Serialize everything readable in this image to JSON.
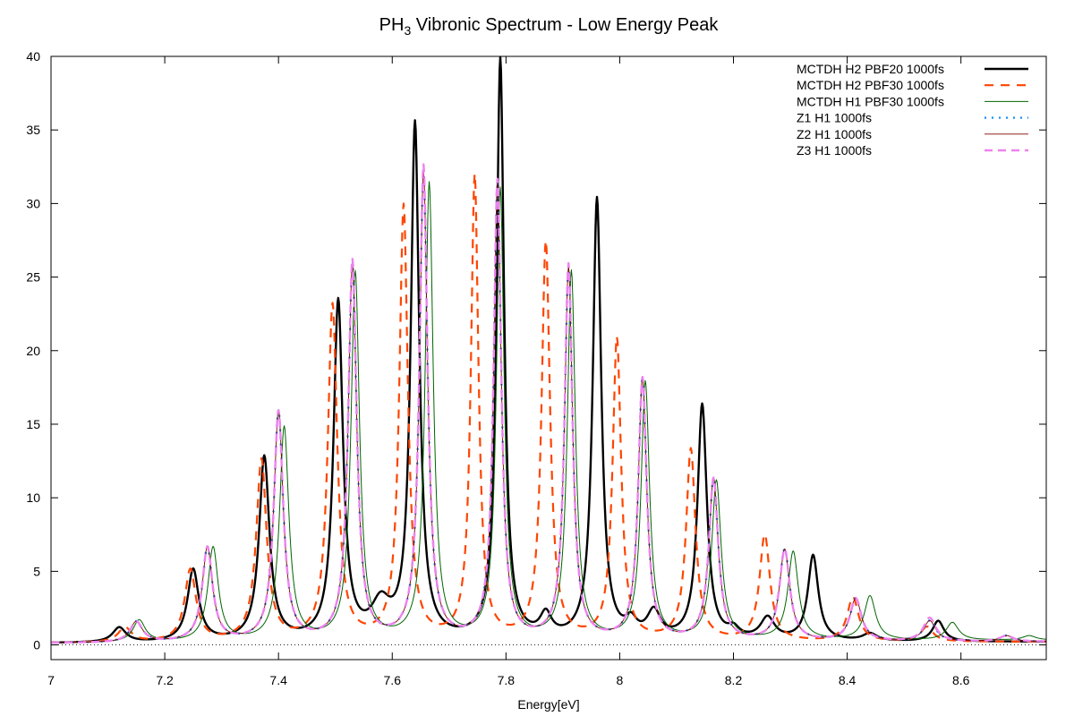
{
  "chart_data": {
    "type": "line",
    "title": "PH",
    "title_sub": "3",
    "title_rest": " Vibronic Spectrum - Low Energy Peak",
    "xlabel": "Energy[eV]",
    "ylabel": "",
    "xlim": [
      7.0,
      8.75
    ],
    "ylim": [
      -1,
      40
    ],
    "xticks": [
      7,
      7.2,
      7.4,
      7.6,
      7.8,
      8,
      8.2,
      8.4,
      8.6
    ],
    "xtick_labels": [
      "7",
      "7.2",
      "7.4",
      "7.6",
      "7.8",
      "8",
      "8.2",
      "8.4",
      "8.6"
    ],
    "yticks": [
      0,
      5,
      10,
      15,
      20,
      25,
      30,
      35,
      40
    ],
    "ytick_labels": [
      "0",
      "5",
      "10",
      "15",
      "20",
      "25",
      "30",
      "35",
      "40"
    ],
    "legend_position": "top-right",
    "grid": false,
    "series": [
      {
        "name": "MCTDH H2 PBF20 1000fs",
        "color": "#000000",
        "style": "solid",
        "width": 2.4,
        "peaks": [
          [
            7.12,
            1.0,
            0.014
          ],
          [
            7.25,
            4.9,
            0.012
          ],
          [
            7.375,
            12.5,
            0.011
          ],
          [
            7.505,
            23.0,
            0.01
          ],
          [
            7.58,
            2.2,
            0.02
          ],
          [
            7.64,
            35.0,
            0.009
          ],
          [
            7.79,
            39.5,
            0.008
          ],
          [
            7.87,
            1.5,
            0.012
          ],
          [
            7.96,
            30.0,
            0.009
          ],
          [
            8.02,
            1.0,
            0.012
          ],
          [
            8.06,
            1.8,
            0.014
          ],
          [
            8.145,
            16.0,
            0.01
          ],
          [
            8.2,
            0.6,
            0.012
          ],
          [
            8.26,
            1.5,
            0.015
          ],
          [
            8.34,
            5.8,
            0.011
          ],
          [
            8.44,
            0.5,
            0.015
          ],
          [
            8.56,
            1.4,
            0.012
          ]
        ],
        "baseline": [
          [
            7.0,
            0.1
          ],
          [
            8.75,
            0.2
          ]
        ]
      },
      {
        "name": "MCTDH H2 PBF30 1000fs",
        "color": "#ff4500",
        "style": "dash-long",
        "width": 2.2,
        "peaks": [
          [
            7.13,
            1.0,
            0.014
          ],
          [
            7.245,
            4.9,
            0.012
          ],
          [
            7.37,
            12.3,
            0.011
          ],
          [
            7.495,
            22.8,
            0.01
          ],
          [
            7.62,
            29.5,
            0.009
          ],
          [
            7.745,
            31.5,
            0.008
          ],
          [
            7.87,
            27.0,
            0.009
          ],
          [
            7.995,
            20.5,
            0.009
          ],
          [
            8.125,
            13.0,
            0.01
          ],
          [
            8.255,
            7.2,
            0.011
          ],
          [
            8.41,
            3.0,
            0.012
          ],
          [
            8.54,
            1.0,
            0.013
          ]
        ],
        "baseline": [
          [
            7.0,
            0.1
          ],
          [
            8.75,
            0.2
          ]
        ]
      },
      {
        "name": "MCTDH H1 PBF30 1000fs",
        "color": "#006400",
        "style": "solid",
        "width": 1.0,
        "peaks": [
          [
            7.155,
            1.5,
            0.013
          ],
          [
            7.285,
            6.4,
            0.011
          ],
          [
            7.41,
            14.5,
            0.01
          ],
          [
            7.535,
            25.0,
            0.009
          ],
          [
            7.665,
            31.0,
            0.0085
          ],
          [
            7.79,
            30.6,
            0.008
          ],
          [
            7.915,
            25.0,
            0.0085
          ],
          [
            8.045,
            17.5,
            0.009
          ],
          [
            8.17,
            10.8,
            0.01
          ],
          [
            8.305,
            6.0,
            0.011
          ],
          [
            8.44,
            3.0,
            0.012
          ],
          [
            8.585,
            1.2,
            0.013
          ],
          [
            8.72,
            0.3,
            0.014
          ]
        ],
        "baseline": [
          [
            7.0,
            0.1
          ],
          [
            8.75,
            0.3
          ]
        ]
      },
      {
        "name": "Z1 H1 1000fs",
        "color": "#1e90ff",
        "style": "dot",
        "width": 2.4,
        "peaks": [
          [
            7.15,
            1.4,
            0.013
          ],
          [
            7.275,
            6.4,
            0.011
          ],
          [
            7.4,
            15.6,
            0.01
          ],
          [
            7.53,
            25.5,
            0.009
          ],
          [
            7.655,
            31.8,
            0.0085
          ],
          [
            7.785,
            31.0,
            0.008
          ],
          [
            7.91,
            25.3,
            0.0085
          ],
          [
            8.04,
            17.8,
            0.009
          ],
          [
            8.165,
            11.0,
            0.01
          ],
          [
            8.29,
            6.2,
            0.011
          ],
          [
            8.415,
            2.9,
            0.012
          ],
          [
            8.545,
            1.4,
            0.013
          ],
          [
            8.68,
            0.4,
            0.014
          ]
        ],
        "baseline": [
          [
            7.0,
            0.1
          ],
          [
            8.75,
            0.2
          ]
        ]
      },
      {
        "name": "Z2 H1 1000fs",
        "color": "#800000",
        "style": "solid",
        "width": 0.9,
        "peaks": [
          [
            7.15,
            1.4,
            0.013
          ],
          [
            7.275,
            6.4,
            0.011
          ],
          [
            7.4,
            15.6,
            0.01
          ],
          [
            7.53,
            25.5,
            0.009
          ],
          [
            7.655,
            31.8,
            0.0085
          ],
          [
            7.785,
            31.0,
            0.008
          ],
          [
            7.91,
            25.3,
            0.0085
          ],
          [
            8.04,
            17.8,
            0.009
          ],
          [
            8.165,
            11.0,
            0.01
          ],
          [
            8.29,
            6.2,
            0.011
          ],
          [
            8.415,
            2.9,
            0.012
          ],
          [
            8.545,
            1.4,
            0.013
          ],
          [
            8.68,
            0.4,
            0.014
          ]
        ],
        "baseline": [
          [
            7.0,
            0.1
          ],
          [
            8.75,
            0.2
          ]
        ]
      },
      {
        "name": "Z3 H1 1000fs",
        "color": "#ee82ee",
        "style": "dash",
        "width": 2.4,
        "peaks": [
          [
            7.15,
            1.4,
            0.013
          ],
          [
            7.275,
            6.4,
            0.011
          ],
          [
            7.4,
            15.6,
            0.01
          ],
          [
            7.53,
            25.8,
            0.009
          ],
          [
            7.655,
            32.2,
            0.0085
          ],
          [
            7.785,
            31.2,
            0.008
          ],
          [
            7.91,
            25.5,
            0.0085
          ],
          [
            8.04,
            17.8,
            0.009
          ],
          [
            8.165,
            11.0,
            0.01
          ],
          [
            8.29,
            6.2,
            0.011
          ],
          [
            8.415,
            2.9,
            0.012
          ],
          [
            8.545,
            1.6,
            0.013
          ],
          [
            8.68,
            0.4,
            0.014
          ]
        ],
        "baseline": [
          [
            7.0,
            0.1
          ],
          [
            8.75,
            0.2
          ]
        ]
      }
    ]
  }
}
